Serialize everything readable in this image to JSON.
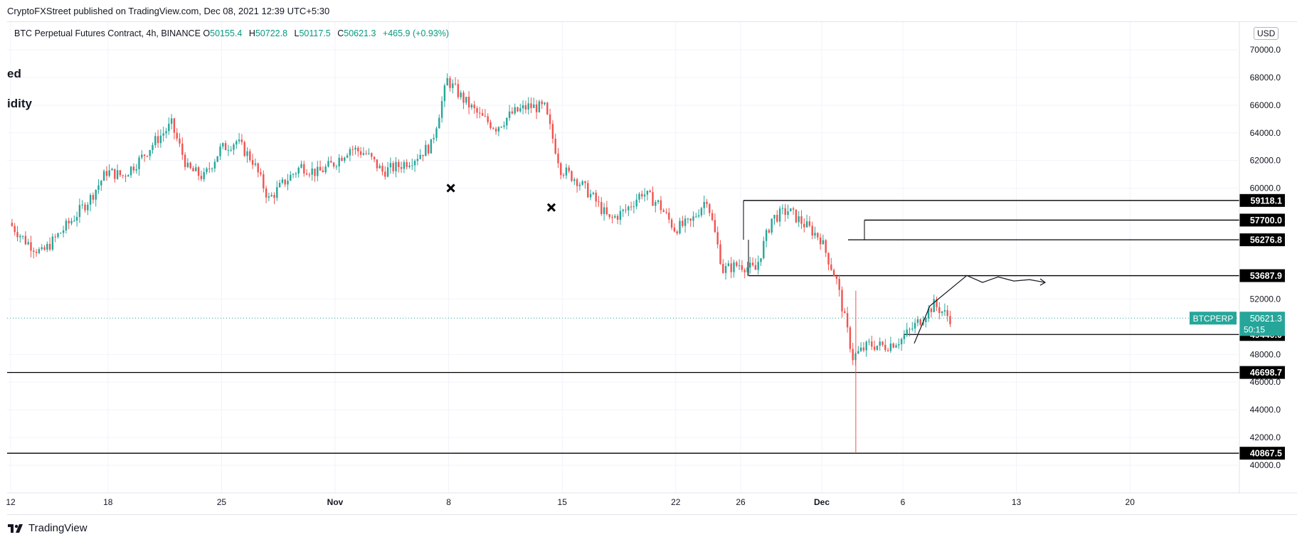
{
  "header": {
    "publisher": "CryptoFXStreet published on TradingView.com, Dec 08, 2021 12:39 UTC+5:30"
  },
  "symbol": {
    "name": "BTC Perpetual Futures Contract, 4h, BINANCE",
    "open_label": "O",
    "open": "50155.4",
    "high_label": "H",
    "high": "50722.8",
    "low_label": "L",
    "low": "50117.5",
    "close_label": "C",
    "close": "50621.3",
    "change": "+465.9 (+0.93%)"
  },
  "side_text": [
    "ed",
    "idity"
  ],
  "currency": "USD",
  "footer": {
    "brand": "TradingView",
    "icon": "tradingview-logo-icon"
  },
  "colors": {
    "up": "#26a69a",
    "down": "#ef5350",
    "last_price": "#26a69a",
    "level_label_bg": "#000000"
  },
  "chart_data": {
    "type": "candlestick",
    "title": "",
    "xlabel": "",
    "ylabel": "",
    "ylim": [
      38000,
      72000
    ],
    "grid": true,
    "x_ticks": [
      "12",
      "18",
      "25",
      "Nov",
      "8",
      "15",
      "22",
      "26",
      "Dec",
      "6",
      "13",
      "20"
    ],
    "y_ticks": [
      "40000.0",
      "42000.0",
      "44000.0",
      "46000.0",
      "48000.0",
      "52000.0",
      "60000.0",
      "62000.0",
      "64000.0",
      "66000.0",
      "68000.0",
      "70000.0"
    ],
    "last_price": {
      "symbol": "BTCPERP",
      "value": 50621.3,
      "label": "50621.3",
      "countdown": "50:15"
    },
    "levels": [
      {
        "value": 59118.1,
        "label": "59118.1"
      },
      {
        "value": 57700.0,
        "label": "57700.0"
      },
      {
        "value": 56276.8,
        "label": "56276.8"
      },
      {
        "value": 53687.9,
        "label": "53687.9"
      },
      {
        "value": 49440.0,
        "label": "49440.0"
      },
      {
        "value": 46698.7,
        "label": "46698.7"
      },
      {
        "value": 40867.5,
        "label": "40867.5"
      }
    ],
    "markers": [
      {
        "name": "x-marker",
        "date_index": 27,
        "value": 59700
      },
      {
        "name": "x-marker",
        "date_index": 33.2,
        "value": 58300
      }
    ],
    "price_path": [
      [
        0,
        57500
      ],
      [
        1,
        56200
      ],
      [
        2,
        55300
      ],
      [
        3,
        56600
      ],
      [
        4,
        57900
      ],
      [
        5,
        59300
      ],
      [
        6,
        61200
      ],
      [
        7,
        60900
      ],
      [
        8,
        62000
      ],
      [
        9,
        63400
      ],
      [
        10,
        64600
      ],
      [
        11,
        61400
      ],
      [
        12,
        60800
      ],
      [
        13,
        62800
      ],
      [
        14,
        63400
      ],
      [
        15,
        62000
      ],
      [
        16,
        59200
      ],
      [
        17,
        60500
      ],
      [
        18,
        61600
      ],
      [
        19,
        61100
      ],
      [
        20,
        61800
      ],
      [
        21,
        62900
      ],
      [
        22,
        62500
      ],
      [
        23,
        61200
      ],
      [
        24,
        61600
      ],
      [
        25,
        62200
      ],
      [
        26,
        63100
      ],
      [
        27,
        67800
      ],
      [
        28,
        66400
      ],
      [
        29,
        65200
      ],
      [
        30,
        64400
      ],
      [
        31,
        65400
      ],
      [
        32,
        65900
      ],
      [
        33,
        65800
      ],
      [
        34,
        61400
      ],
      [
        35,
        60600
      ],
      [
        36,
        59300
      ],
      [
        37,
        57700
      ],
      [
        38,
        58400
      ],
      [
        39,
        59700
      ],
      [
        40,
        58900
      ],
      [
        41,
        57100
      ],
      [
        42,
        57500
      ],
      [
        43,
        59300
      ],
      [
        44,
        54100
      ],
      [
        45,
        54500
      ],
      [
        46,
        54100
      ],
      [
        47,
        57800
      ],
      [
        48,
        58400
      ],
      [
        49,
        57400
      ],
      [
        50,
        56400
      ],
      [
        51,
        53300
      ],
      [
        52,
        47800
      ],
      [
        53,
        48700
      ],
      [
        54,
        48600
      ],
      [
        55,
        49100
      ],
      [
        56,
        50300
      ],
      [
        57,
        51600
      ],
      [
        58,
        50621
      ]
    ],
    "price_path_days": {
      "day_start": 12,
      "note_dates": [
        "Oct 12",
        "Dec 8"
      ]
    },
    "projection_path": [
      [
        0,
        48800
      ],
      [
        1,
        51500
      ],
      [
        2,
        53700
      ],
      [
        3,
        53200
      ],
      [
        4,
        53600
      ],
      [
        5,
        53300
      ],
      [
        6,
        53400
      ],
      [
        7,
        53200
      ]
    ]
  }
}
